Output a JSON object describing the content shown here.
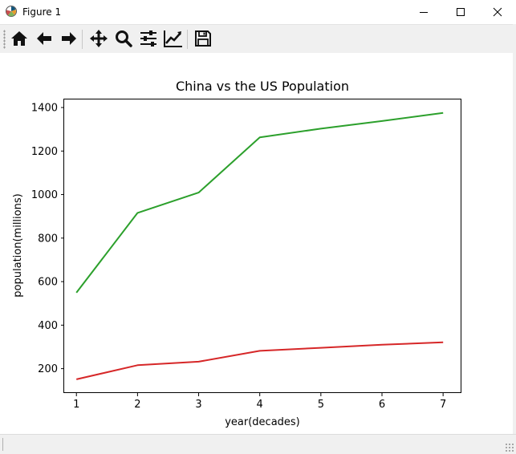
{
  "window": {
    "title": "Figure 1",
    "minimize_icon": "minimize-icon",
    "maximize_icon": "maximize-icon",
    "close_icon": "close-icon"
  },
  "toolbar": {
    "buttons": [
      {
        "name": "home-button",
        "icon": "home-icon"
      },
      {
        "name": "back-button",
        "icon": "arrow-left-icon"
      },
      {
        "name": "forward-button",
        "icon": "arrow-right-icon"
      },
      {
        "name": "pan-button",
        "icon": "move-arrows-icon"
      },
      {
        "name": "zoom-button",
        "icon": "magnifier-icon"
      },
      {
        "name": "configure-subplots-button",
        "icon": "sliders-icon"
      },
      {
        "name": "edit-axis-button",
        "icon": "line-chart-icon"
      },
      {
        "name": "save-button",
        "icon": "floppy-disk-icon"
      }
    ]
  },
  "chart_data": {
    "type": "line",
    "title": "China vs the US Population",
    "xlabel": "year(decades)",
    "ylabel": "population(millions)",
    "x": [
      1,
      2,
      3,
      4,
      5,
      6,
      7
    ],
    "xlim": [
      0.8,
      7.3
    ],
    "ylim": [
      88,
      1437
    ],
    "xticks": [
      1,
      2,
      3,
      4,
      5,
      6,
      7
    ],
    "yticks": [
      200,
      400,
      600,
      800,
      1000,
      1200,
      1400
    ],
    "grid": false,
    "series": [
      {
        "color": "#2ca02c",
        "values": [
          549,
          916,
          1009,
          1263,
          1303,
          1338,
          1375
        ]
      },
      {
        "color": "#d62728",
        "values": [
          151,
          216,
          232,
          282,
          296,
          310,
          321
        ]
      }
    ]
  }
}
